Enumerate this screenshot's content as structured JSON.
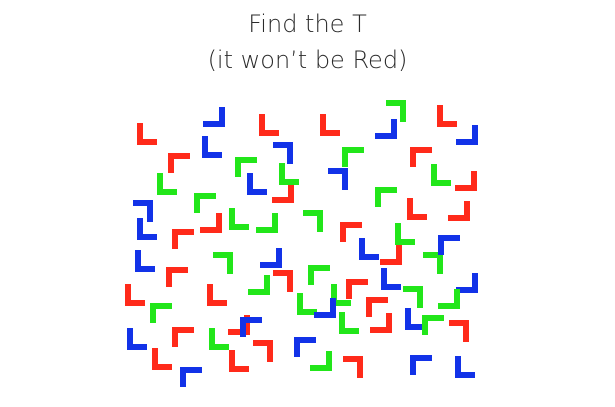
{
  "puzzle": {
    "title": "Find the T",
    "subtitle": "(it won’t be Red)"
  },
  "colors": {
    "red": "#ff2a1a",
    "green": "#22e61a",
    "blue": "#1232e8"
  },
  "pieces_legend": {
    "shape": "L-shaped glyph",
    "count": 86
  }
}
